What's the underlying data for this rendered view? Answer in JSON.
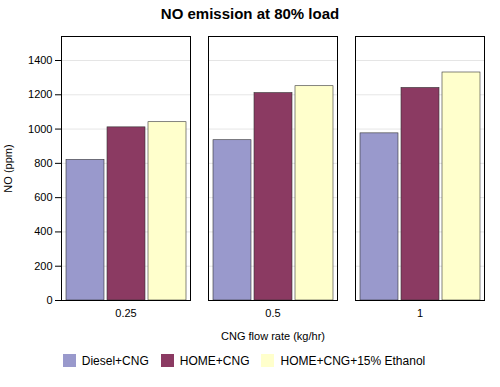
{
  "chart_data": {
    "type": "bar",
    "title": "NO emission at 80% load",
    "xlabel": "CNG flow rate (kg/hr)",
    "ylabel": "NO (ppm)",
    "categories": [
      "0.25",
      "0.5",
      "1"
    ],
    "series": [
      {
        "name": "Diesel+CNG",
        "color": "#9999CC",
        "values": [
          820,
          935,
          975
        ]
      },
      {
        "name": "HOME+CNG",
        "color": "#8B3A62",
        "values": [
          1010,
          1210,
          1240
        ]
      },
      {
        "name": "HOME+CNG+15% Ethanol",
        "color": "#FFFFCC",
        "values": [
          1040,
          1250,
          1330
        ]
      }
    ],
    "ylim": [
      0,
      1540
    ],
    "yticks": [
      0,
      200,
      400,
      600,
      800,
      1000,
      1200,
      1400
    ],
    "grid": true,
    "legend": "bottom"
  }
}
